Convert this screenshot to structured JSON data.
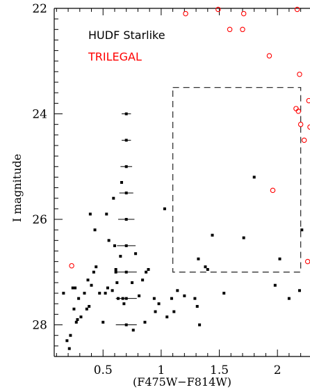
{
  "chart_data": {
    "type": "scatter",
    "title": "",
    "xlabel": "(F475W−F814W)",
    "ylabel": "I magnitude",
    "xlim": [
      0.08,
      2.28
    ],
    "ylim": [
      28.6,
      22.0
    ],
    "y_inverted": true,
    "xticks": [
      0.5,
      1,
      1.5,
      2
    ],
    "xtick_labels": [
      "0.5",
      "1",
      "1.5",
      "2"
    ],
    "yticks": [
      22,
      24,
      26,
      28
    ],
    "ytick_labels": [
      "22",
      "24",
      "26",
      "28"
    ],
    "legend": {
      "placement": "top-left",
      "entries": [
        "HUDF Starlike",
        "TRILEGAL"
      ]
    },
    "colors": {
      "hudf": "#000000",
      "trilegal": "#ff0000",
      "box": "#333333"
    },
    "selection_box": {
      "x": [
        1.1,
        2.2
      ],
      "y": [
        23.5,
        27.0
      ],
      "style": "dashed"
    },
    "error_bars": {
      "x": 0.7,
      "points": [
        {
          "y": 24.0,
          "xerr": 0.04
        },
        {
          "y": 24.5,
          "xerr": 0.04
        },
        {
          "y": 25.0,
          "xerr": 0.05
        },
        {
          "y": 25.5,
          "xerr": 0.06
        },
        {
          "y": 26.0,
          "xerr": 0.07
        },
        {
          "y": 26.5,
          "xerr": 0.08
        },
        {
          "y": 27.0,
          "xerr": 0.09
        },
        {
          "y": 27.5,
          "xerr": 0.09
        },
        {
          "y": 28.0,
          "xerr": 0.09
        }
      ]
    },
    "series": [
      {
        "name": "HUDF Starlike",
        "marker": "square",
        "points": [
          [
            0.16,
            27.4
          ],
          [
            0.19,
            28.3
          ],
          [
            0.21,
            28.45
          ],
          [
            0.22,
            28.2
          ],
          [
            0.24,
            27.3
          ],
          [
            0.25,
            27.7
          ],
          [
            0.26,
            27.3
          ],
          [
            0.27,
            27.95
          ],
          [
            0.28,
            27.9
          ],
          [
            0.29,
            27.5
          ],
          [
            0.31,
            27.85
          ],
          [
            0.34,
            27.4
          ],
          [
            0.36,
            27.7
          ],
          [
            0.37,
            27.15
          ],
          [
            0.38,
            27.65
          ],
          [
            0.39,
            25.9
          ],
          [
            0.4,
            27.25
          ],
          [
            0.42,
            27.0
          ],
          [
            0.43,
            26.2
          ],
          [
            0.44,
            26.9
          ],
          [
            0.47,
            27.4
          ],
          [
            0.5,
            27.95
          ],
          [
            0.52,
            27.4
          ],
          [
            0.53,
            25.9
          ],
          [
            0.54,
            27.3
          ],
          [
            0.55,
            26.4
          ],
          [
            0.58,
            27.35
          ],
          [
            0.59,
            25.6
          ],
          [
            0.6,
            26.5
          ],
          [
            0.61,
            27.0
          ],
          [
            0.61,
            26.95
          ],
          [
            0.62,
            27.2
          ],
          [
            0.63,
            27.5
          ],
          [
            0.65,
            26.7
          ],
          [
            0.66,
            25.3
          ],
          [
            0.67,
            27.5
          ],
          [
            0.68,
            27.6
          ],
          [
            0.75,
            27.2
          ],
          [
            0.76,
            28.1
          ],
          [
            0.78,
            26.65
          ],
          [
            0.81,
            27.45
          ],
          [
            0.84,
            27.15
          ],
          [
            0.86,
            27.95
          ],
          [
            0.87,
            27.0
          ],
          [
            0.89,
            26.95
          ],
          [
            0.94,
            27.5
          ],
          [
            0.95,
            27.75
          ],
          [
            0.98,
            27.6
          ],
          [
            1.03,
            25.8
          ],
          [
            1.05,
            27.85
          ],
          [
            1.09,
            27.5
          ],
          [
            1.11,
            27.75
          ],
          [
            1.14,
            27.35
          ],
          [
            1.2,
            27.45
          ],
          [
            1.29,
            27.5
          ],
          [
            1.31,
            27.65
          ],
          [
            1.32,
            26.75
          ],
          [
            1.33,
            28.0
          ],
          [
            1.38,
            26.9
          ],
          [
            1.4,
            26.95
          ],
          [
            1.44,
            26.3
          ],
          [
            1.54,
            27.4
          ],
          [
            1.71,
            26.35
          ],
          [
            1.8,
            25.2
          ],
          [
            1.98,
            27.25
          ],
          [
            2.02,
            26.75
          ],
          [
            2.1,
            27.5
          ],
          [
            2.19,
            27.35
          ],
          [
            2.21,
            26.2
          ]
        ]
      },
      {
        "name": "TRILEGAL",
        "marker": "open-circle",
        "points": [
          [
            0.23,
            26.88
          ],
          [
            1.21,
            22.1
          ],
          [
            1.49,
            22.02
          ],
          [
            1.59,
            22.4
          ],
          [
            1.7,
            22.4
          ],
          [
            1.71,
            22.1
          ],
          [
            1.93,
            22.9
          ],
          [
            1.96,
            25.45
          ],
          [
            2.16,
            23.9
          ],
          [
            2.17,
            22.02
          ],
          [
            2.18,
            23.95
          ],
          [
            2.19,
            23.25
          ],
          [
            2.2,
            24.2
          ],
          [
            2.23,
            24.5
          ],
          [
            2.26,
            26.8
          ],
          [
            2.27,
            23.75
          ],
          [
            2.28,
            24.25
          ]
        ]
      }
    ]
  }
}
